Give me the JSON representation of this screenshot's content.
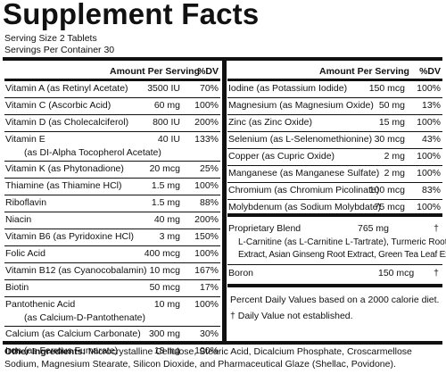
{
  "title": "Supplement Facts",
  "serving_size": "Serving Size 2 Tablets",
  "servings_per_container": "Servings Per Container 30",
  "left_header": {
    "amount": "Amount Per Serving",
    "dv": "%DV"
  },
  "right_header": {
    "amount": "Amount Per Serving",
    "dv": "%DV"
  },
  "left_rows": [
    {
      "name": "Vitamin A (as Retinyl Acetate)",
      "amount": "3500 IU",
      "dv": "70%"
    },
    {
      "name": "Vitamin C (Ascorbic Acid)",
      "amount": "60 mg",
      "dv": "100%"
    },
    {
      "name": "Vitamin D (as Cholecalciferol)",
      "amount": "800 IU",
      "dv": "200%"
    },
    {
      "name": "Vitamin E",
      "name2": "(as DI-Alpha Tocopherol Acetate)",
      "amount": "40 IU",
      "dv": "133%"
    },
    {
      "name": "Vitamin K (as Phytonadione)",
      "amount": "20 mcg",
      "dv": "25%"
    },
    {
      "name": "Thiamine (as Thiamine HCl)",
      "amount": "1.5 mg",
      "dv": "100%"
    },
    {
      "name": "Riboflavin",
      "amount": "1.5 mg",
      "dv": "88%"
    },
    {
      "name": "Niacin",
      "amount": "40 mg",
      "dv": "200%"
    },
    {
      "name": "Vitamin B6 (as Pyridoxine HCl)",
      "amount": "3 mg",
      "dv": "150%"
    },
    {
      "name": "Folic Acid",
      "amount": "400 mcg",
      "dv": "100%"
    },
    {
      "name": "Vitamin B12 (as Cyanocobalamin)",
      "amount": "10 mcg",
      "dv": "167%"
    },
    {
      "name": "Biotin",
      "amount": "50 mcg",
      "dv": "17%"
    },
    {
      "name": "Pantothenic Acid",
      "name2": "(as Calcium-D-Pantothenate)",
      "amount": "10 mg",
      "dv": "100%"
    },
    {
      "name": "Calcium (as Calcium Carbonate)",
      "amount": "300 mg",
      "dv": "30%"
    },
    {
      "name": "Iron (as Ferrous Fumarate)",
      "amount": "18 mg",
      "dv": "100%"
    }
  ],
  "right_rows": [
    {
      "name": "Iodine (as Potassium Iodide)",
      "amount": "150 mcg",
      "dv": "100%"
    },
    {
      "name": "Magnesium (as Magnesium Oxide)",
      "amount": "50 mg",
      "dv": "13%"
    },
    {
      "name": "Zinc (as Zinc Oxide)",
      "amount": "15 mg",
      "dv": "100%"
    },
    {
      "name": "Selenium (as L-Selenomethionine)",
      "amount": "30 mcg",
      "dv": "43%"
    },
    {
      "name": "Copper (as Cupric Oxide)",
      "amount": "2 mg",
      "dv": "100%"
    },
    {
      "name": "Manganese (as Manganese Sulfate)",
      "amount": "2 mg",
      "dv": "100%"
    },
    {
      "name": "Chromium (as Chromium Picolinate)",
      "amount": "100 mcg",
      "dv": "83%"
    },
    {
      "name": "Molybdenum (as Sodium Molybdate)",
      "amount": "75 mcg",
      "dv": "100%"
    }
  ],
  "proprietary_blend": {
    "name": "Proprietary Blend",
    "amount": "765 mg",
    "dv": "†",
    "lines": [
      "L-Carnitine (as L-Carnitine L-Tartrate), Turmeric Root",
      "Extract, Asian Ginseng Root Extract, Green Tea Leaf Extract"
    ]
  },
  "boron": {
    "name": "Boron",
    "amount": "150 mcg",
    "dv": "†"
  },
  "footnote_1": "Percent Daily Values based on a 2000 calorie diet.",
  "footnote_2": "† Daily Value not established.",
  "other_ingredients": {
    "label": "Other Ingredients:",
    "text": " Microcrystalline Cellulose, Stearic Acid, Dicalcium Phosphate, Croscarmellose Sodium, Magnesium Stearate, Silicon Dioxide, and Pharmaceutical Glaze (Shellac, Povidone)."
  }
}
